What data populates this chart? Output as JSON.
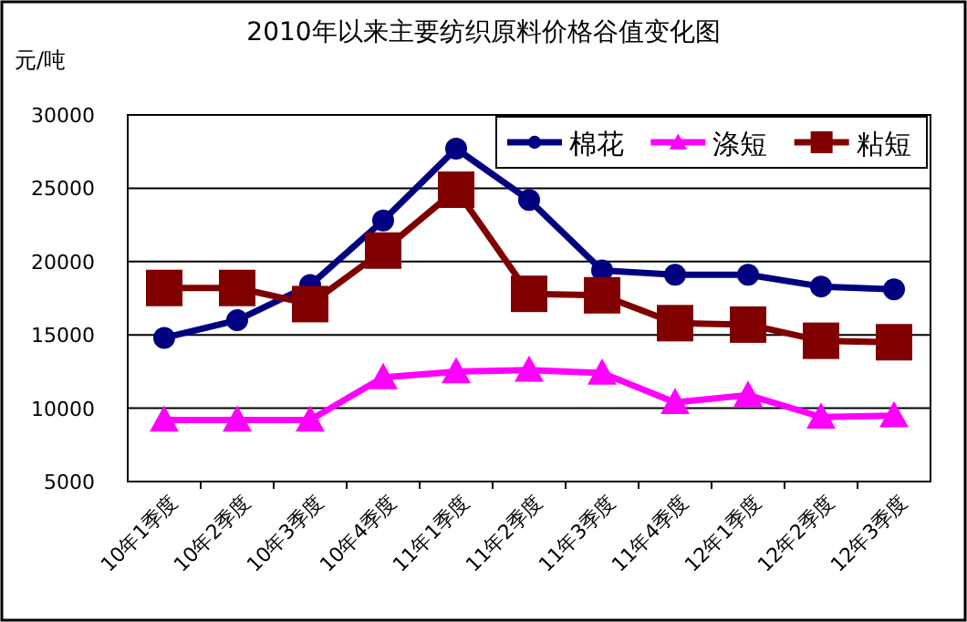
{
  "chart_data": {
    "type": "line",
    "title": "2010年以来主要纺织原料价格谷值变化图",
    "ylabel": "元/吨",
    "categories": [
      "10年1季度",
      "10年2季度",
      "10年3季度",
      "10年4季度",
      "11年1季度",
      "11年2季度",
      "11年3季度",
      "11年4季度",
      "12年1季度",
      "12年2季度",
      "12年3季度"
    ],
    "ylim": [
      5000,
      30000
    ],
    "yticks": [
      5000,
      10000,
      15000,
      20000,
      25000,
      30000
    ],
    "grid": "y",
    "legend": "top right",
    "series": [
      {
        "name": "棉花",
        "color": "#000080",
        "marker": "circle",
        "values": [
          14800,
          16000,
          18400,
          22800,
          27700,
          24200,
          19400,
          19100,
          19100,
          18300,
          18100
        ]
      },
      {
        "name": "涤短",
        "color": "#ff00ff",
        "marker": "triangle",
        "values": [
          9200,
          9200,
          9200,
          12100,
          12500,
          12600,
          12400,
          10400,
          10900,
          9400,
          9500
        ]
      },
      {
        "name": "粘短",
        "color": "#800000",
        "marker": "square",
        "values": [
          18200,
          18200,
          17100,
          20750,
          24900,
          17800,
          17700,
          15800,
          15700,
          14600,
          14500
        ]
      }
    ]
  }
}
